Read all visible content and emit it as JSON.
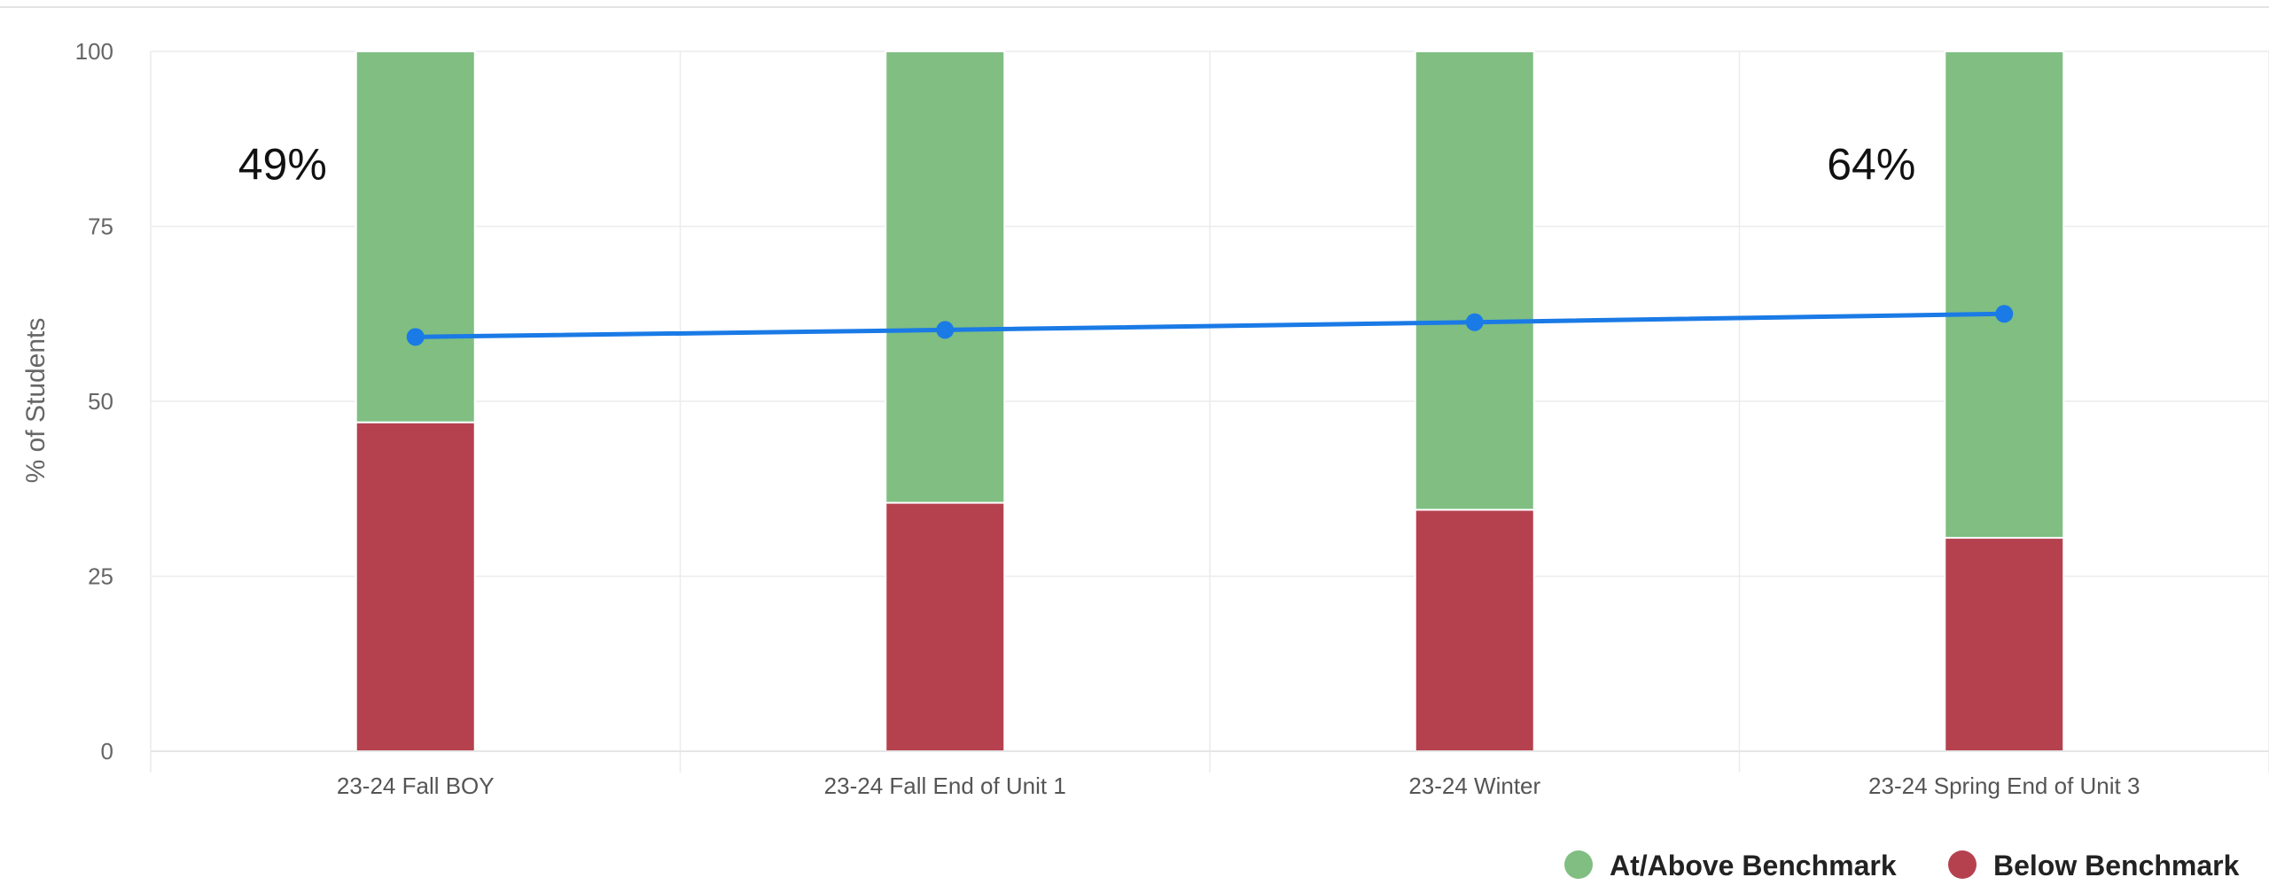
{
  "chart_data": {
    "type": "bar",
    "stacked": true,
    "categories": [
      "23-24 Fall BOY",
      "23-24 Fall End of Unit 1",
      "23-24 Winter",
      "23-24 Spring End of Unit 3"
    ],
    "ylabel": "% of Students",
    "ylim": [
      0,
      100
    ],
    "yticks": [
      0,
      25,
      50,
      75,
      100
    ],
    "grid": true,
    "legend_placement": "bottom-right",
    "series": [
      {
        "name": "Below Benchmark",
        "color": "#b5414f",
        "values": [
          47,
          35.5,
          34.5,
          30.5
        ]
      },
      {
        "name": "At/Above Benchmark",
        "color": "#80be82",
        "values": [
          53,
          64.5,
          65.5,
          69.5
        ]
      }
    ],
    "line": {
      "color": "#1a7ae6",
      "values": [
        59.2,
        60.2,
        61.3,
        62.5
      ]
    },
    "annotations": [
      {
        "text": "49%",
        "category_index": 0,
        "y": 84
      },
      {
        "text": "64%",
        "category_index": 3,
        "y": 84
      }
    ]
  }
}
